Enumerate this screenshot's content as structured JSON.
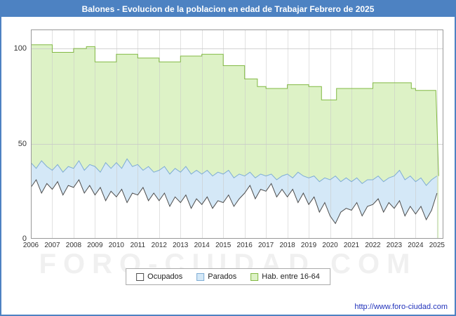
{
  "title": "Balones - Evolucion de la poblacion en edad de Trabajar Febrero de 2025",
  "watermark": "FORO-CIUDAD.COM",
  "footer": {
    "url": "http://www.foro-ciudad.com"
  },
  "colors": {
    "frame_blue": "#4d82c2",
    "grid": "#c8c8c8",
    "plot_border": "#999999",
    "green_fill": "#ddf2c6",
    "green_stroke": "#82b944",
    "blue_fill": "#d4e8f7",
    "blue_stroke": "#7fadd4",
    "white_fill": "#ffffff",
    "dark_stroke": "#4d4d4d"
  },
  "legend": {
    "items": [
      {
        "label": "Ocupados",
        "fill": "#ffffff",
        "stroke": "#4d4d4d"
      },
      {
        "label": "Parados",
        "fill": "#d4e8f7",
        "stroke": "#7fadd4"
      },
      {
        "label": "Hab. entre 16-64",
        "fill": "#ddf2c6",
        "stroke": "#82b944"
      }
    ]
  },
  "chart_data": {
    "type": "area",
    "title": "Balones - Evolucion de la poblacion en edad de Trabajar Febrero de 2025",
    "xlabel": "",
    "ylabel": "",
    "xlim": [
      2006,
      2025.3
    ],
    "ylim": [
      0,
      110
    ],
    "x_ticks": [
      2006,
      2007,
      2008,
      2009,
      2010,
      2011,
      2012,
      2013,
      2014,
      2015,
      2016,
      2017,
      2018,
      2019,
      2020,
      2021,
      2022,
      2023,
      2024,
      2025
    ],
    "y_ticks": [
      0,
      50,
      100
    ],
    "grid": true,
    "legend_position": "bottom",
    "series": [
      {
        "name": "Hab. entre 16-64",
        "style": "step",
        "fill": "#ddf2c6",
        "stroke": "#82b944",
        "breakpoints": [
          {
            "x": 2006.0,
            "y": 102
          },
          {
            "x": 2007.0,
            "y": 98
          },
          {
            "x": 2008.0,
            "y": 100
          },
          {
            "x": 2008.6,
            "y": 101
          },
          {
            "x": 2009.0,
            "y": 93
          },
          {
            "x": 2010.0,
            "y": 97
          },
          {
            "x": 2011.0,
            "y": 95
          },
          {
            "x": 2012.0,
            "y": 93
          },
          {
            "x": 2013.0,
            "y": 96
          },
          {
            "x": 2014.0,
            "y": 97
          },
          {
            "x": 2015.0,
            "y": 91
          },
          {
            "x": 2016.0,
            "y": 84
          },
          {
            "x": 2016.6,
            "y": 80
          },
          {
            "x": 2017.0,
            "y": 79
          },
          {
            "x": 2018.0,
            "y": 81
          },
          {
            "x": 2019.0,
            "y": 80
          },
          {
            "x": 2019.6,
            "y": 73
          },
          {
            "x": 2020.3,
            "y": 79
          },
          {
            "x": 2021.0,
            "y": 79
          },
          {
            "x": 2022.0,
            "y": 82
          },
          {
            "x": 2023.0,
            "y": 82
          },
          {
            "x": 2023.8,
            "y": 79
          },
          {
            "x": 2024.0,
            "y": 78
          },
          {
            "x": 2024.95,
            "y": 78
          },
          {
            "x": 2025.08,
            "y": 33,
            "diag": true
          }
        ]
      },
      {
        "name": "Parados",
        "style": "line",
        "fill": "#d4e8f7",
        "stroke": "#7fadd4",
        "x_start": 2006,
        "x_step": 0.25,
        "values": [
          40,
          37,
          41,
          38,
          36,
          39,
          35,
          38,
          37,
          41,
          36,
          39,
          38,
          35,
          40,
          37,
          40,
          37,
          42,
          38,
          39,
          36,
          38,
          35,
          36,
          38,
          34,
          37,
          35,
          38,
          34,
          36,
          34,
          36,
          33,
          35,
          34,
          36,
          32,
          34,
          33,
          35,
          32,
          34,
          33,
          34,
          31,
          33,
          34,
          32,
          35,
          33,
          32,
          33,
          30,
          32,
          31,
          33,
          30,
          32,
          30,
          32,
          29,
          31,
          31,
          33,
          30,
          32,
          33,
          36,
          31,
          33,
          30,
          32,
          28,
          31,
          33
        ]
      },
      {
        "name": "Ocupados",
        "style": "line",
        "fill": "#ffffff",
        "stroke": "#4d4d4d",
        "x_start": 2006,
        "x_step": 0.25,
        "values": [
          27,
          31,
          24,
          29,
          26,
          30,
          23,
          28,
          27,
          31,
          24,
          28,
          23,
          27,
          20,
          25,
          22,
          26,
          19,
          24,
          23,
          27,
          20,
          24,
          20,
          24,
          17,
          22,
          19,
          23,
          16,
          21,
          18,
          22,
          16,
          20,
          19,
          23,
          17,
          21,
          24,
          28,
          21,
          26,
          25,
          29,
          22,
          26,
          22,
          26,
          19,
          24,
          18,
          22,
          14,
          19,
          12,
          8,
          14,
          16,
          15,
          19,
          12,
          17,
          18,
          21,
          14,
          19,
          16,
          20,
          12,
          17,
          13,
          17,
          10,
          15,
          24
        ]
      }
    ]
  }
}
